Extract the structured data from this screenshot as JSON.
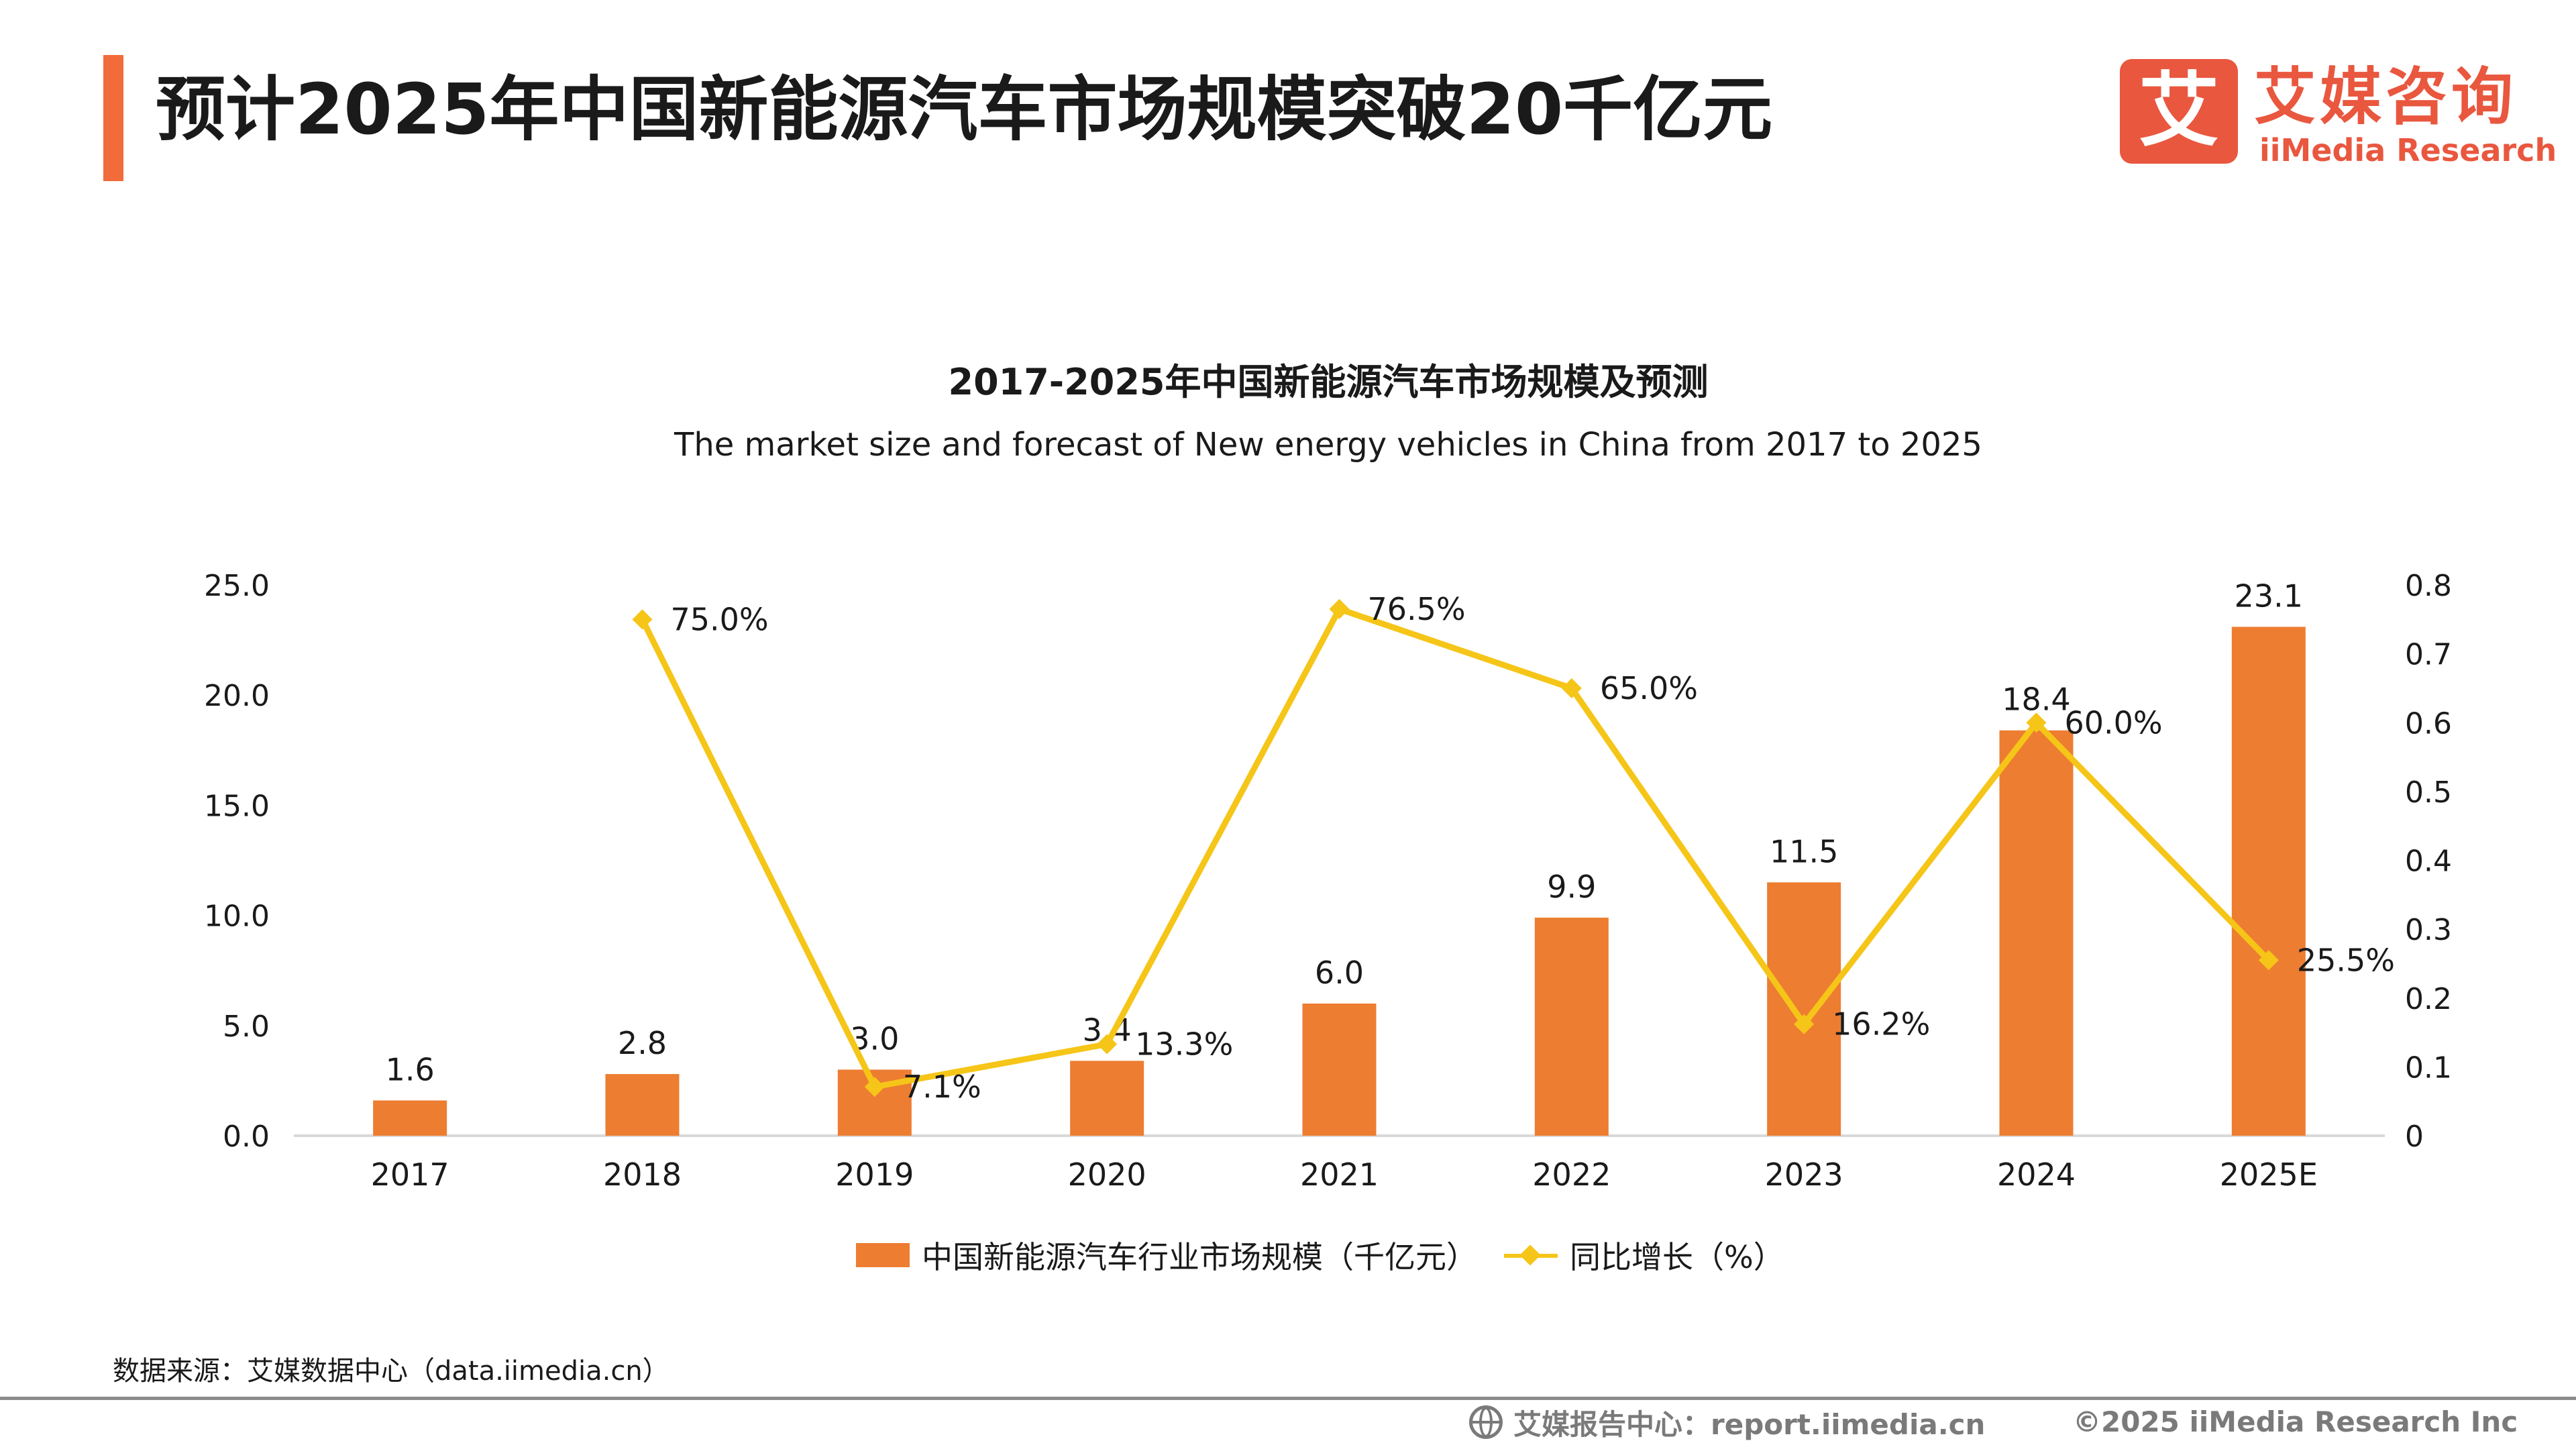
{
  "page": {
    "title": "预计2025年中国新能源汽车市场规模突破20千亿元"
  },
  "logo": {
    "mark": "艾",
    "name_cn": "艾媒咨询",
    "name_en": "iiMedia Research"
  },
  "chart_data": {
    "type": "bar",
    "title": "2017-2025年中国新能源汽车市场规模及预测",
    "subtitle": "The market size and forecast of New energy vehicles in China from 2017 to 2025",
    "categories": [
      "2017",
      "2018",
      "2019",
      "2020",
      "2021",
      "2022",
      "2023",
      "2024",
      "2025E"
    ],
    "series": [
      {
        "name": "中国新能源汽车行业市场规模（千亿元）",
        "type": "bar",
        "axis": "left",
        "values": [
          1.6,
          2.8,
          3.0,
          3.4,
          6.0,
          9.9,
          11.5,
          18.4,
          23.1
        ],
        "labels": [
          "1.6",
          "2.8",
          "3.0",
          "3.4",
          "6.0",
          "9.9",
          "11.5",
          "18.4",
          "23.1"
        ]
      },
      {
        "name": "同比增长（%）",
        "type": "line",
        "axis": "right",
        "values": [
          null,
          0.75,
          0.071,
          0.133,
          0.765,
          0.65,
          0.162,
          0.6,
          0.255
        ],
        "labels": [
          "",
          "75.0%",
          "7.1%",
          "13.3%",
          "76.5%",
          "65.0%",
          "16.2%",
          "60.0%",
          "25.5%"
        ]
      }
    ],
    "y_left": {
      "range": [
        0,
        25
      ],
      "ticks": [
        0,
        5,
        10,
        15,
        20,
        25
      ],
      "tick_labels": [
        "0.0",
        "5.0",
        "10.0",
        "15.0",
        "20.0",
        "25.0"
      ]
    },
    "y_right": {
      "range": [
        0,
        0.8
      ],
      "ticks": [
        0,
        0.1,
        0.2,
        0.3,
        0.4,
        0.5,
        0.6,
        0.7,
        0.8
      ],
      "tick_labels": [
        "0",
        "0.1",
        "0.2",
        "0.3",
        "0.4",
        "0.5",
        "0.6",
        "0.7",
        "0.8"
      ]
    },
    "grid": false,
    "legend": "bottom",
    "colors": {
      "bar": "#ed7d31",
      "line": "#f5c518",
      "axis": "#d9d9d9",
      "text": "#1a1a1a"
    }
  },
  "legend": {
    "bar_label": "中国新能源汽车行业市场规模（千亿元）",
    "line_label": "同比增长（%）"
  },
  "footer": {
    "source": "数据来源：艾媒数据中心（data.iimedia.cn）",
    "report": "艾媒报告中心：report.iimedia.cn",
    "copyright": "©2025  iiMedia Research  Inc"
  }
}
